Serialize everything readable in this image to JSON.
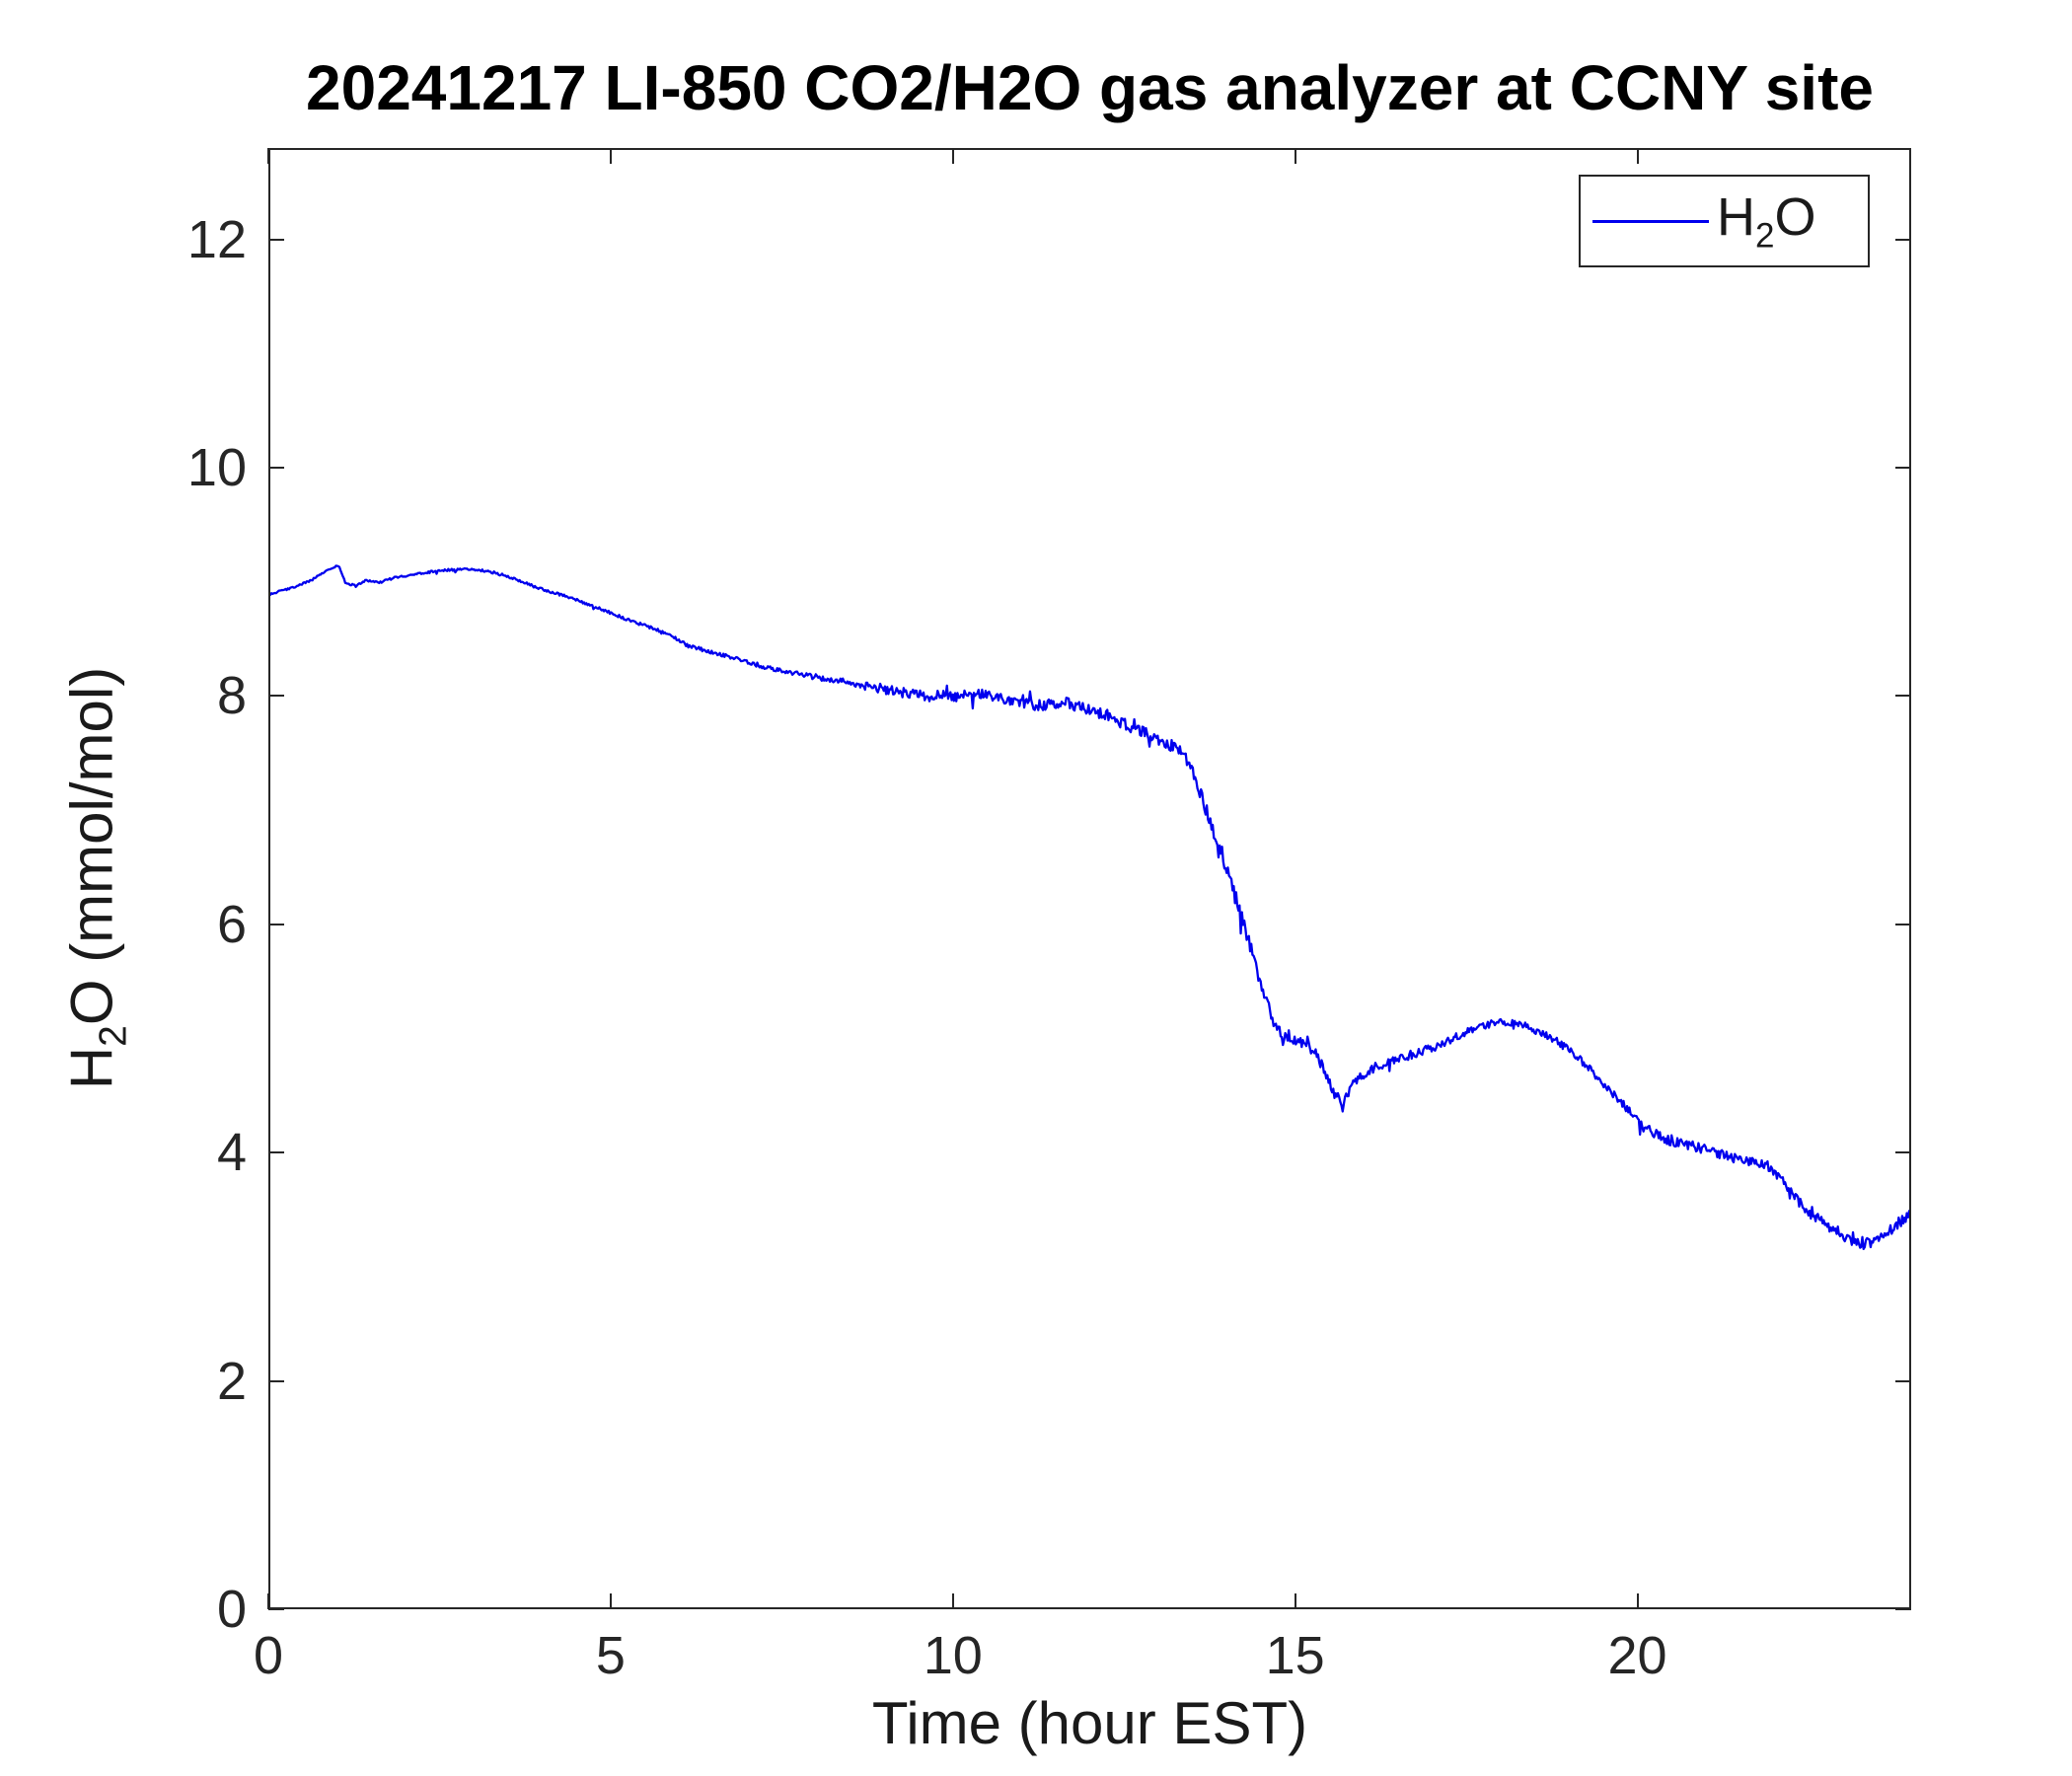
{
  "title": "20241217 LI-850 CO2/H2O gas analyzer at CCNY site",
  "xlabel": "Time (hour EST)",
  "ylabel": {
    "pre": "H",
    "sub": "2",
    "post": "O (mmol/mol)"
  },
  "legend": {
    "pre": "H",
    "sub": "2",
    "post": "O"
  },
  "colors": {
    "line": "#0000EE",
    "axis": "#262626",
    "title": "#000000"
  },
  "chart_data": {
    "type": "line",
    "title": "20241217 LI-850 CO2/H2O gas analyzer at CCNY site",
    "xlabel": "Time (hour EST)",
    "ylabel": "H2O (mmol/mol)",
    "xlim": [
      0,
      24
    ],
    "ylim": [
      0,
      12.8
    ],
    "xticks": [
      0,
      5,
      10,
      15,
      20
    ],
    "yticks": [
      0,
      2,
      4,
      6,
      8,
      10,
      12
    ],
    "grid": false,
    "legend_position": "top-right",
    "series": [
      {
        "name": "H2O",
        "color": "#0000EE",
        "anchors": [
          [
            0.0,
            8.9
          ],
          [
            0.3,
            8.95
          ],
          [
            0.6,
            9.02
          ],
          [
            0.85,
            9.12
          ],
          [
            1.0,
            9.15
          ],
          [
            1.1,
            9.0
          ],
          [
            1.25,
            8.97
          ],
          [
            1.4,
            9.02
          ],
          [
            1.6,
            9.0
          ],
          [
            1.8,
            9.04
          ],
          [
            2.0,
            9.06
          ],
          [
            2.3,
            9.09
          ],
          [
            2.6,
            9.11
          ],
          [
            2.9,
            9.12
          ],
          [
            3.2,
            9.1
          ],
          [
            3.5,
            9.05
          ],
          [
            3.8,
            8.98
          ],
          [
            4.1,
            8.92
          ],
          [
            4.4,
            8.87
          ],
          [
            4.7,
            8.8
          ],
          [
            5.0,
            8.73
          ],
          [
            5.3,
            8.66
          ],
          [
            5.6,
            8.6
          ],
          [
            5.9,
            8.52
          ],
          [
            6.1,
            8.45
          ],
          [
            6.4,
            8.4
          ],
          [
            6.7,
            8.35
          ],
          [
            7.0,
            8.3
          ],
          [
            7.3,
            8.25
          ],
          [
            7.6,
            8.21
          ],
          [
            8.0,
            8.17
          ],
          [
            8.4,
            8.13
          ],
          [
            8.8,
            8.08
          ],
          [
            9.2,
            8.04
          ],
          [
            9.6,
            8.0
          ],
          [
            10.0,
            8.0
          ],
          [
            10.4,
            8.02
          ],
          [
            10.7,
            7.98
          ],
          [
            11.0,
            7.94
          ],
          [
            11.3,
            7.92
          ],
          [
            11.6,
            7.96
          ],
          [
            11.9,
            7.9
          ],
          [
            12.2,
            7.85
          ],
          [
            12.5,
            7.76
          ],
          [
            12.8,
            7.68
          ],
          [
            13.1,
            7.6
          ],
          [
            13.35,
            7.52
          ],
          [
            13.5,
            7.35
          ],
          [
            13.65,
            7.1
          ],
          [
            13.8,
            6.85
          ],
          [
            13.95,
            6.6
          ],
          [
            14.1,
            6.3
          ],
          [
            14.25,
            6.0
          ],
          [
            14.4,
            5.7
          ],
          [
            14.55,
            5.4
          ],
          [
            14.7,
            5.08
          ],
          [
            14.85,
            5.02
          ],
          [
            15.0,
            5.0
          ],
          [
            15.15,
            4.95
          ],
          [
            15.3,
            4.88
          ],
          [
            15.45,
            4.7
          ],
          [
            15.6,
            4.48
          ],
          [
            15.7,
            4.42
          ],
          [
            15.85,
            4.6
          ],
          [
            16.0,
            4.68
          ],
          [
            16.2,
            4.75
          ],
          [
            16.5,
            4.82
          ],
          [
            16.8,
            4.87
          ],
          [
            17.1,
            4.93
          ],
          [
            17.4,
            5.02
          ],
          [
            17.7,
            5.1
          ],
          [
            18.0,
            5.14
          ],
          [
            18.3,
            5.13
          ],
          [
            18.6,
            5.05
          ],
          [
            18.9,
            4.95
          ],
          [
            19.2,
            4.8
          ],
          [
            19.5,
            4.62
          ],
          [
            19.8,
            4.42
          ],
          [
            20.1,
            4.22
          ],
          [
            20.4,
            4.12
          ],
          [
            20.7,
            4.07
          ],
          [
            21.0,
            4.02
          ],
          [
            21.3,
            3.97
          ],
          [
            21.6,
            3.92
          ],
          [
            21.9,
            3.89
          ],
          [
            22.1,
            3.78
          ],
          [
            22.3,
            3.6
          ],
          [
            22.5,
            3.5
          ],
          [
            22.7,
            3.4
          ],
          [
            22.9,
            3.33
          ],
          [
            23.1,
            3.26
          ],
          [
            23.3,
            3.2
          ],
          [
            23.5,
            3.22
          ],
          [
            23.7,
            3.3
          ],
          [
            23.9,
            3.4
          ],
          [
            24.0,
            3.45
          ]
        ],
        "noise": [
          [
            0,
            0.008
          ],
          [
            5,
            0.012
          ],
          [
            7,
            0.018
          ],
          [
            8.5,
            0.03
          ],
          [
            9.5,
            0.05
          ],
          [
            12.5,
            0.05
          ],
          [
            13.2,
            0.05
          ],
          [
            14.0,
            0.07
          ],
          [
            14.8,
            0.06
          ],
          [
            15.5,
            0.04
          ],
          [
            16.5,
            0.04
          ],
          [
            18.0,
            0.03
          ],
          [
            19.5,
            0.035
          ],
          [
            20.5,
            0.045
          ],
          [
            21.8,
            0.04
          ],
          [
            22.3,
            0.06
          ],
          [
            23.2,
            0.06
          ],
          [
            24.0,
            0.04
          ]
        ]
      }
    ]
  }
}
